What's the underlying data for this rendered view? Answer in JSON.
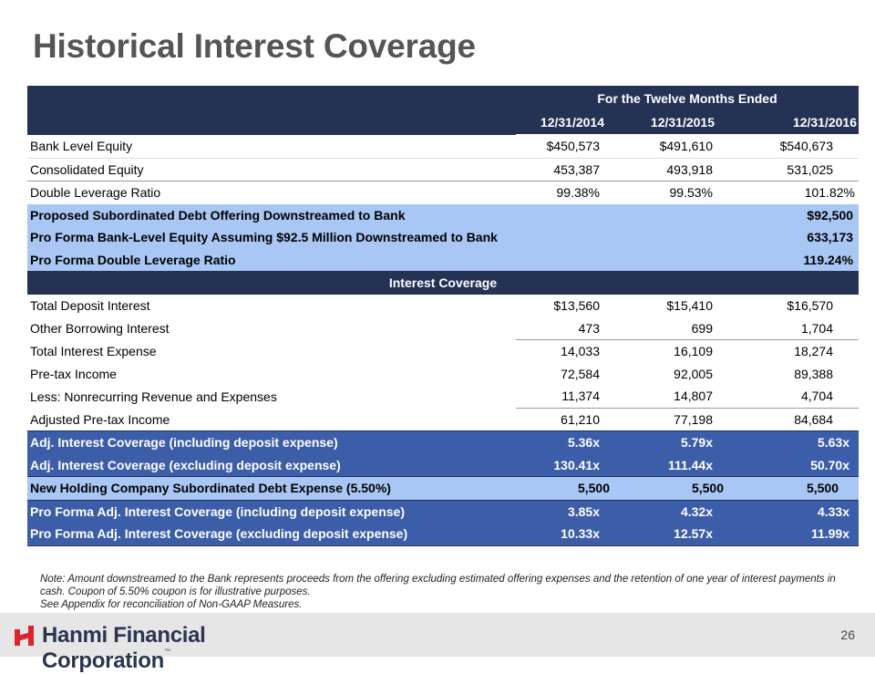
{
  "slide": {
    "title": "Historical Interest Coverage",
    "page_number": "26"
  },
  "table": {
    "header_group": "For the Twelve Months Ended",
    "columns": [
      "12/31/2014",
      "12/31/2015",
      "12/31/2016"
    ],
    "section_equity": [
      {
        "label": "Bank Level Equity",
        "values": [
          "$450,573",
          "$491,610",
          "$540,673"
        ]
      },
      {
        "label": "Consolidated Equity",
        "values": [
          "453,387",
          "493,918",
          "531,025"
        ]
      },
      {
        "label": "Double Leverage Ratio",
        "values": [
          "99.38%",
          "99.53%",
          "101.82%"
        ]
      }
    ],
    "proforma_equity": [
      {
        "label": "Proposed Subordinated Debt Offering Downstreamed to Bank",
        "value": "$92,500"
      },
      {
        "label": "Pro Forma Bank-Level Equity Assuming $92.5 Million Downstreamed to Bank",
        "value": "633,173"
      },
      {
        "label": "Pro Forma Double Leverage Ratio",
        "value": "119.24%"
      }
    ],
    "coverage_header": "Interest Coverage",
    "section_coverage": [
      {
        "label": "Total Deposit Interest",
        "values": [
          "$13,560",
          "$15,410",
          "$16,570"
        ]
      },
      {
        "label": "Other Borrowing Interest",
        "values": [
          "473",
          "699",
          "1,704"
        ]
      },
      {
        "label": "Total Interest Expense",
        "values": [
          "14,033",
          "16,109",
          "18,274"
        ]
      },
      {
        "label": "Pre-tax Income",
        "values": [
          "72,584",
          "92,005",
          "89,388"
        ]
      },
      {
        "label": "Less: Nonrecurring Revenue and Expenses",
        "values": [
          "11,374",
          "14,807",
          "4,704"
        ]
      },
      {
        "label": "Adjusted Pre-tax Income",
        "values": [
          "61,210",
          "77,198",
          "84,684"
        ]
      }
    ],
    "adj_coverage": [
      {
        "label": "Adj. Interest Coverage (including deposit expense)",
        "values": [
          "5.36x",
          "5.79x",
          "5.63x"
        ]
      },
      {
        "label": "Adj. Interest Coverage (excluding deposit expense)",
        "values": [
          "130.41x",
          "111.44x",
          "50.70x"
        ]
      }
    ],
    "holding_expense": {
      "label": "New Holding Company Subordinated Debt Expense (5.50%)",
      "values": [
        "5,500",
        "5,500",
        "5,500"
      ]
    },
    "proforma_coverage": [
      {
        "label": "Pro Forma Adj. Interest Coverage (including deposit expense)",
        "values": [
          "3.85x",
          "4.32x",
          "4.33x"
        ]
      },
      {
        "label": "Pro Forma Adj. Interest Coverage (excluding deposit expense)",
        "values": [
          "10.33x",
          "12.57x",
          "11.99x"
        ]
      }
    ]
  },
  "notes": {
    "line1": "Note: Amount downstreamed to the Bank represents proceeds from the offering excluding estimated offering expenses and the retention of one year of interest payments in cash.  Coupon of 5.50% coupon is for illustrative purposes.",
    "line2": "See Appendix for reconciliation of Non-GAAP Measures."
  },
  "brand": {
    "name": "Hanmi Financial Corporation",
    "tm": "™",
    "accent_color": "#d7262e",
    "header_color": "#243354",
    "highlight_light": "#a9c7f4",
    "highlight_mid": "#3c5ea8"
  }
}
